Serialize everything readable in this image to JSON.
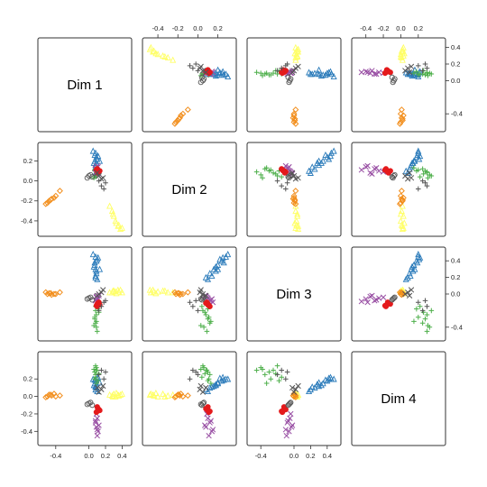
{
  "chart_data": {
    "type": "scatter",
    "kind": "scatterplot-matrix",
    "title": "",
    "variables": [
      "Dim 1",
      "Dim 2",
      "Dim 3",
      "Dim 4"
    ],
    "axis_ticks": [
      {
        "variable": "Dim 1",
        "ticks": [
          -0.4,
          -0.2,
          0.0,
          0.2,
          0.4
        ],
        "range": [
          -0.55,
          0.45
        ]
      },
      {
        "variable": "Dim 2",
        "ticks": [
          -0.4,
          -0.2,
          0.0,
          0.2
        ],
        "range": [
          -0.5,
          0.33
        ]
      },
      {
        "variable": "Dim 3",
        "ticks": [
          -0.4,
          -0.2,
          0.0,
          0.2,
          0.4
        ],
        "range": [
          -0.5,
          0.5
        ]
      },
      {
        "variable": "Dim 4",
        "ticks": [
          -0.4,
          -0.2,
          0.0,
          0.2,
          0.4
        ],
        "range": [
          -0.5,
          0.45
        ]
      }
    ],
    "tick_labels": {
      "Dim 1": [
        "-0.4",
        "0.0",
        "0.2",
        "0.4"
      ],
      "Dim 2": [
        "-0.4",
        "-0.2",
        "0.0",
        "0.2"
      ],
      "Dim 3": [
        "-0.4",
        "0.0",
        "0.2",
        "0.4"
      ],
      "Dim 4": [
        "-0.4",
        "-0.2",
        "0.0",
        "0.2",
        "0.4"
      ]
    },
    "groups": [
      {
        "color": "#2B7BBA",
        "marker": "triangle",
        "points": [
          [
            0.08,
            0.28,
            0.45,
            0.2
          ],
          [
            0.09,
            0.24,
            0.4,
            0.18
          ],
          [
            0.07,
            0.2,
            0.35,
            0.15
          ],
          [
            0.08,
            0.16,
            0.3,
            0.12
          ],
          [
            0.09,
            0.12,
            0.25,
            0.1
          ],
          [
            0.08,
            0.08,
            0.2,
            0.08
          ],
          [
            0.1,
            0.22,
            0.42,
            0.21
          ],
          [
            0.07,
            0.26,
            0.38,
            0.19
          ],
          [
            0.09,
            0.18,
            0.28,
            0.14
          ],
          [
            0.08,
            0.14,
            0.22,
            0.11
          ],
          [
            0.11,
            0.25,
            0.44,
            0.22
          ],
          [
            0.06,
            0.18,
            0.33,
            0.13
          ],
          [
            0.1,
            0.1,
            0.18,
            0.06
          ],
          [
            0.13,
            0.2,
            0.3,
            0.16
          ],
          [
            0.05,
            0.3,
            0.48,
            0.2
          ]
        ]
      },
      {
        "color": "#4DAF4A",
        "marker": "plus",
        "points": [
          [
            0.08,
            0.05,
            -0.2,
            0.35
          ],
          [
            0.09,
            0.08,
            -0.25,
            0.3
          ],
          [
            0.07,
            0.1,
            -0.3,
            0.28
          ],
          [
            0.08,
            0.12,
            -0.35,
            0.25
          ],
          [
            0.09,
            0.06,
            -0.4,
            0.33
          ],
          [
            0.08,
            0.04,
            -0.15,
            0.22
          ],
          [
            0.1,
            0.09,
            -0.45,
            0.3
          ],
          [
            0.07,
            0.11,
            -0.28,
            0.2
          ],
          [
            0.09,
            0.13,
            -0.33,
            0.15
          ],
          [
            0.12,
            0.07,
            -0.22,
            0.26
          ],
          [
            0.06,
            0.03,
            -0.38,
            0.31
          ],
          [
            0.11,
            0.1,
            -0.18,
            0.18
          ]
        ]
      },
      {
        "color": "#984EA3",
        "marker": "cross",
        "points": [
          [
            0.1,
            0.1,
            -0.05,
            -0.25
          ],
          [
            0.08,
            0.12,
            -0.08,
            -0.3
          ],
          [
            0.09,
            0.08,
            -0.03,
            -0.35
          ],
          [
            0.11,
            0.14,
            -0.06,
            -0.4
          ],
          [
            0.1,
            0.11,
            -0.09,
            -0.45
          ],
          [
            0.09,
            0.09,
            -0.04,
            -0.2
          ],
          [
            0.08,
            0.13,
            -0.07,
            -0.28
          ],
          [
            0.12,
            0.07,
            -0.02,
            -0.33
          ],
          [
            0.1,
            0.15,
            -0.1,
            -0.38
          ]
        ]
      },
      {
        "color": "#FFFF66",
        "marker": "triangle",
        "points": [
          [
            0.35,
            -0.45,
            0.05,
            0.02
          ],
          [
            0.32,
            -0.4,
            0.03,
            0.0
          ],
          [
            0.3,
            -0.35,
            0.04,
            0.03
          ],
          [
            0.28,
            -0.3,
            0.02,
            0.01
          ],
          [
            0.38,
            -0.48,
            0.05,
            0.02
          ],
          [
            0.33,
            -0.42,
            0.01,
            0.04
          ],
          [
            0.25,
            -0.25,
            0.02,
            0.02
          ],
          [
            0.36,
            -0.44,
            0.03,
            0.01
          ],
          [
            0.29,
            -0.33,
            0.04,
            0.0
          ],
          [
            0.4,
            -0.47,
            0.02,
            0.03
          ]
        ]
      },
      {
        "color": "#F28E1C",
        "marker": "diamond",
        "points": [
          [
            -0.5,
            -0.22,
            0.0,
            0.0
          ],
          [
            -0.48,
            -0.2,
            0.01,
            0.02
          ],
          [
            -0.45,
            -0.18,
            -0.01,
            0.01
          ],
          [
            -0.42,
            -0.17,
            0.0,
            0.03
          ],
          [
            -0.52,
            -0.23,
            0.02,
            -0.01
          ],
          [
            -0.46,
            -0.19,
            0.01,
            0.02
          ],
          [
            -0.4,
            -0.15,
            0.0,
            0.0
          ],
          [
            -0.35,
            -0.1,
            0.02,
            0.01
          ]
        ]
      },
      {
        "color": "#E41A1C",
        "marker": "circle-filled",
        "points": [
          [
            0.1,
            0.1,
            -0.12,
            -0.12
          ],
          [
            0.12,
            0.09,
            -0.1,
            -0.15
          ],
          [
            0.09,
            0.11,
            -0.14,
            -0.18
          ],
          [
            0.11,
            0.08,
            -0.11,
            -0.14
          ],
          [
            0.13,
            0.1,
            -0.13,
            -0.16
          ],
          [
            0.1,
            0.12,
            -0.15,
            -0.17
          ]
        ]
      },
      {
        "color": "#555555",
        "marker": "circle-open",
        "points": [
          [
            0.0,
            0.05,
            -0.05,
            -0.08
          ],
          [
            -0.02,
            0.03,
            -0.06,
            -0.09
          ],
          [
            0.02,
            0.06,
            -0.04,
            -0.07
          ],
          [
            0.04,
            0.04,
            -0.07,
            -0.1
          ]
        ]
      },
      {
        "color": "#555555",
        "marker": "plus",
        "points": [
          [
            0.15,
            -0.05,
            -0.15,
            0.3
          ],
          [
            0.18,
            -0.08,
            -0.1,
            0.2
          ],
          [
            0.12,
            0.0,
            -0.2,
            0.25
          ],
          [
            0.2,
            -0.02,
            -0.08,
            0.28
          ]
        ]
      },
      {
        "color": "#555555",
        "marker": "cross",
        "points": [
          [
            0.12,
            0.05,
            0.0,
            0.05
          ],
          [
            0.15,
            0.02,
            0.02,
            0.08
          ],
          [
            0.1,
            0.08,
            -0.02,
            0.1
          ],
          [
            0.17,
            0.03,
            0.05,
            0.12
          ]
        ]
      }
    ]
  }
}
